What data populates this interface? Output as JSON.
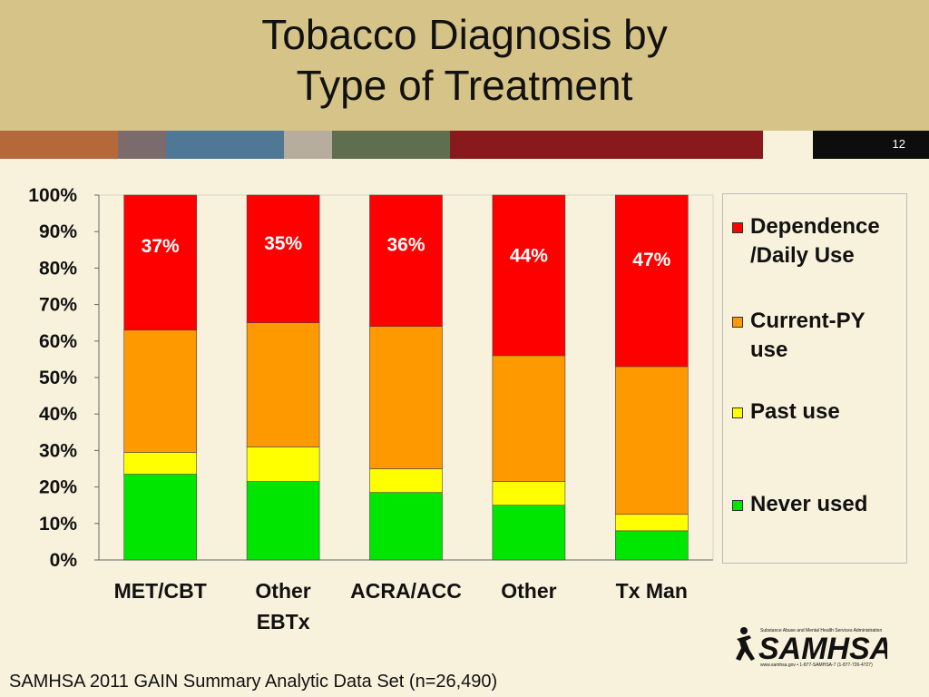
{
  "slide": {
    "title_line1": "Tobacco Diagnosis by",
    "title_line2": "Type of Treatment",
    "slide_number": "12",
    "source": "SAMHSA 2011 GAIN Summary Analytic Data Set (n=26,490)",
    "logo": {
      "name": "SAMHSA",
      "tagline": "Substance Abuse and Mental Health Services Administration",
      "contact": "www.samhsa.gov • 1-877-SAMHSA-7 (1-877-726-4727)"
    },
    "stripe_colors": [
      "#b5683a",
      "#7b6b6c",
      "#4f7896",
      "#b7ad9e",
      "#5e6e4f",
      "#881a1d"
    ]
  },
  "chart_data": {
    "type": "bar",
    "stacked": true,
    "percent_stacked": true,
    "categories": [
      "MET/CBT",
      "Other EBTx",
      "ACRA/ACC",
      "Other",
      "Tx Man"
    ],
    "category_lines": [
      [
        "MET/CBT"
      ],
      [
        "Other",
        "EBTx"
      ],
      [
        "ACRA/ACC"
      ],
      [
        "Other"
      ],
      [
        "Tx Man"
      ]
    ],
    "series": [
      {
        "name": "Never used",
        "color": "#00e600",
        "values": [
          23.5,
          21.5,
          18.5,
          15,
          8
        ]
      },
      {
        "name": "Past use",
        "color": "#ffff00",
        "values": [
          6,
          9.5,
          6.5,
          6.5,
          4.5
        ]
      },
      {
        "name": "Current-PY use",
        "color": "#ff9900",
        "values": [
          33.5,
          34,
          39,
          34.5,
          40.5
        ]
      },
      {
        "name": "Dependence/Daily Use",
        "color": "#ff0000",
        "values": [
          37,
          35,
          36,
          44,
          47
        ]
      }
    ],
    "data_labels": [
      "37%",
      "35%",
      "36%",
      "44%",
      "47%"
    ],
    "ylim": [
      0,
      100
    ],
    "yticks": [
      "0%",
      "10%",
      "20%",
      "30%",
      "40%",
      "50%",
      "60%",
      "70%",
      "80%",
      "90%",
      "100%"
    ],
    "grid": false,
    "legend_position": "right",
    "legend": [
      {
        "label": "Dependence /Daily Use",
        "color": "#ff0000"
      },
      {
        "label": "Current-PY use",
        "color": "#ff9900"
      },
      {
        "label": "Past use",
        "color": "#ffff00"
      },
      {
        "label": "Never used",
        "color": "#00e600"
      }
    ]
  }
}
